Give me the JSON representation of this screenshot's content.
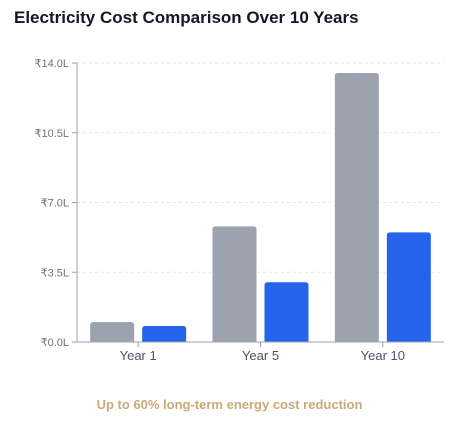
{
  "chart_data": {
    "type": "bar",
    "title": "Electricity Cost Comparison Over 10 Years",
    "categories": [
      "Year 1",
      "Year 5",
      "Year 10"
    ],
    "series": [
      {
        "values": [
          1.0,
          5.8,
          13.5
        ],
        "color": "#9ca3af"
      },
      {
        "values": [
          0.8,
          3.0,
          5.5
        ],
        "color": "#2563eb"
      }
    ],
    "ylim": [
      0,
      14
    ],
    "yticks": [
      0,
      3.5,
      7,
      10.5,
      14
    ],
    "ytick_labels": [
      "₹0.0L",
      "₹3.5L",
      "₹7.0L",
      "₹10.5L",
      "₹14.0L"
    ],
    "grid": true,
    "legend": "none"
  },
  "footnote": "Up to 60% long-term energy cost reduction"
}
